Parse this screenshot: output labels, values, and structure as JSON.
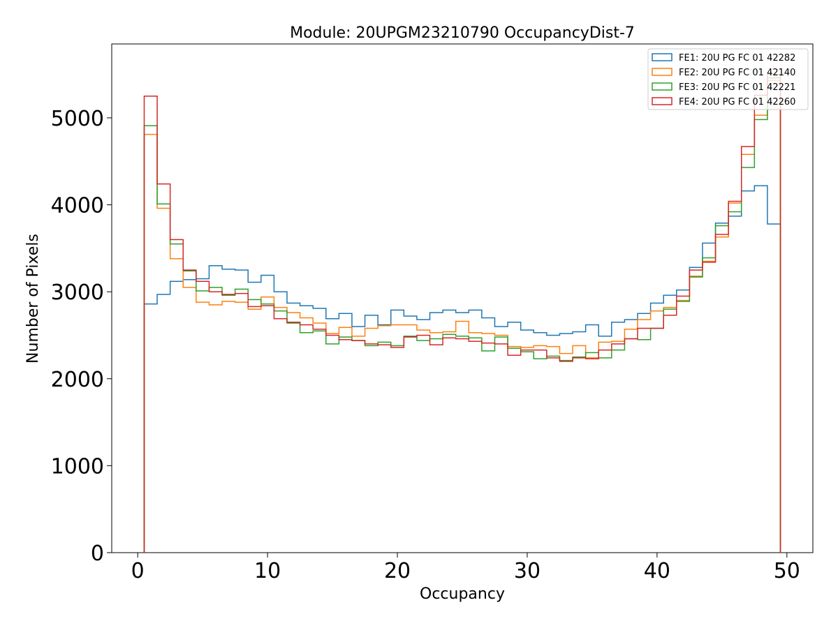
{
  "chart_data": {
    "type": "histogram",
    "title": "Module: 20UPGM23210790 OccupancyDist-7",
    "xlabel": "Occupancy",
    "ylabel": "Number of Pixels",
    "xlim": [
      -2,
      52
    ],
    "ylim": [
      0,
      5850
    ],
    "xticks": [
      0,
      10,
      20,
      30,
      40,
      50
    ],
    "yticks": [
      0,
      1000,
      2000,
      3000,
      4000,
      5000
    ],
    "bin_start": 0.5,
    "bin_width": 1,
    "grid": false,
    "legend_position": "top-right",
    "series": [
      {
        "name": "FE1: 20U PG FC 01 42282",
        "color": "#1f77b4",
        "values": [
          2860,
          2970,
          3120,
          3140,
          3150,
          3300,
          3260,
          3250,
          3110,
          3190,
          3000,
          2870,
          2840,
          2810,
          2690,
          2750,
          2600,
          2730,
          2620,
          2790,
          2720,
          2680,
          2760,
          2790,
          2760,
          2790,
          2700,
          2600,
          2650,
          2560,
          2530,
          2500,
          2520,
          2540,
          2620,
          2490,
          2650,
          2680,
          2750,
          2870,
          2960,
          3020,
          3280,
          3560,
          3790,
          3870,
          4160,
          4220,
          3780
        ]
      },
      {
        "name": "FE2: 20U PG FC 01 42140",
        "color": "#ff7f0e",
        "values": [
          4810,
          3960,
          3380,
          3050,
          2880,
          2850,
          2890,
          2880,
          2800,
          2940,
          2820,
          2760,
          2700,
          2640,
          2520,
          2590,
          2490,
          2580,
          2610,
          2620,
          2620,
          2560,
          2530,
          2540,
          2660,
          2530,
          2520,
          2500,
          2370,
          2360,
          2380,
          2370,
          2290,
          2380,
          2240,
          2420,
          2430,
          2570,
          2680,
          2780,
          2820,
          2900,
          3180,
          3350,
          3630,
          4020,
          4580,
          5030,
          5430
        ]
      },
      {
        "name": "FE3: 20U PG FC 01 42221",
        "color": "#2ca02c",
        "values": [
          4910,
          4010,
          3550,
          3240,
          3010,
          3050,
          2960,
          3030,
          2910,
          2860,
          2780,
          2640,
          2530,
          2550,
          2400,
          2480,
          2440,
          2380,
          2420,
          2380,
          2490,
          2440,
          2460,
          2510,
          2490,
          2470,
          2320,
          2480,
          2350,
          2310,
          2230,
          2260,
          2210,
          2250,
          2300,
          2240,
          2330,
          2460,
          2450,
          2580,
          2800,
          2890,
          3170,
          3390,
          3760,
          3920,
          4430,
          4980,
          5460
        ]
      },
      {
        "name": "FE4: 20U PG FC 01 42260",
        "color": "#d62728",
        "values": [
          5250,
          4240,
          3600,
          3250,
          3120,
          3000,
          2970,
          2980,
          2830,
          2840,
          2690,
          2650,
          2620,
          2570,
          2500,
          2450,
          2440,
          2400,
          2390,
          2360,
          2480,
          2500,
          2390,
          2470,
          2460,
          2430,
          2410,
          2400,
          2270,
          2330,
          2330,
          2240,
          2200,
          2240,
          2230,
          2330,
          2400,
          2460,
          2580,
          2580,
          2730,
          2950,
          3250,
          3340,
          3660,
          4040,
          4670,
          5260,
          5500
        ]
      }
    ]
  }
}
